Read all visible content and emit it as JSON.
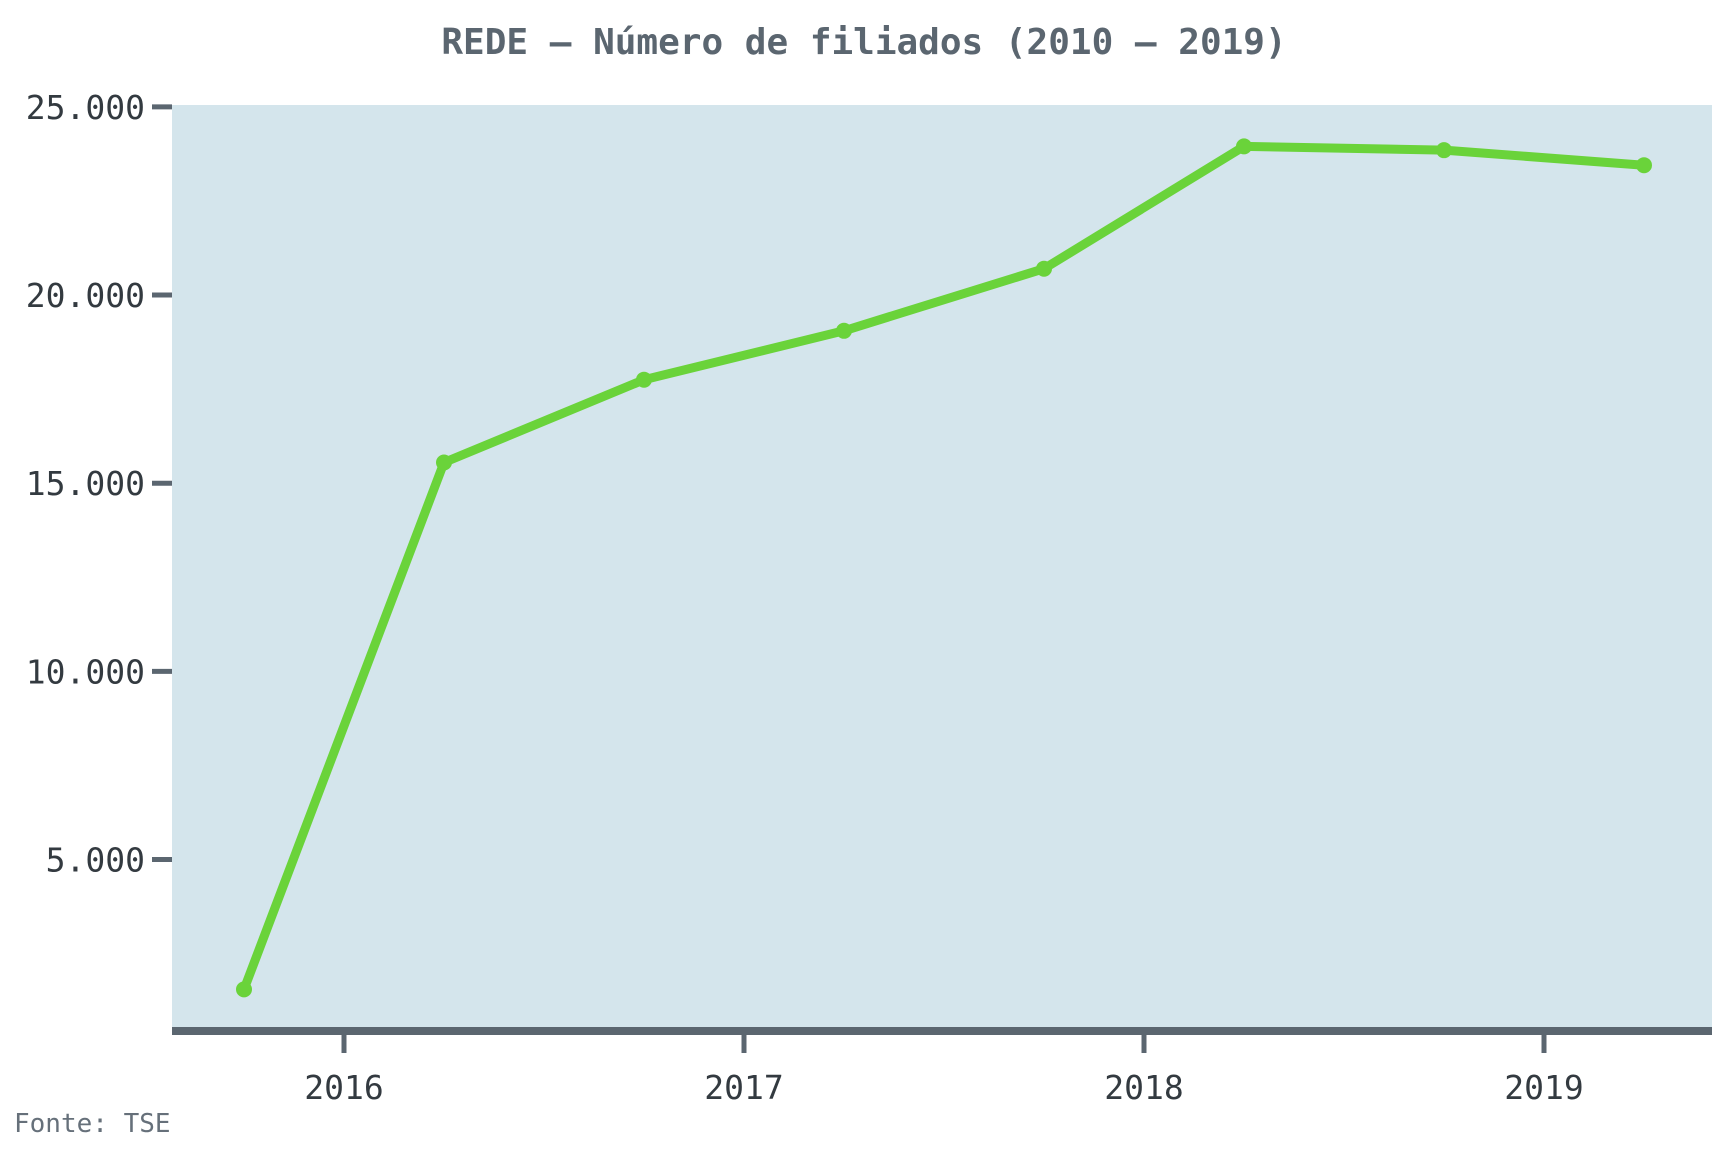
{
  "chart_data": {
    "type": "line",
    "title": "REDE – Número de filiados (2010 – 2019)",
    "xlabel": "",
    "ylabel": "",
    "x_ticks": [
      {
        "value": 2016,
        "label": "2016"
      },
      {
        "value": 2017,
        "label": "2017"
      },
      {
        "value": 2018,
        "label": "2018"
      },
      {
        "value": 2019,
        "label": "2019"
      }
    ],
    "y_ticks": [
      {
        "value": 5000,
        "label": "5.000"
      },
      {
        "value": 10000,
        "label": "10.000"
      },
      {
        "value": 15000,
        "label": "15.000"
      },
      {
        "value": 20000,
        "label": "20.000"
      },
      {
        "value": 25000,
        "label": "25.000"
      }
    ],
    "xlim": [
      2015.57,
      2019.42
    ],
    "ylim": [
      550,
      25050
    ],
    "grid": false,
    "series": [
      {
        "color": "#6ad33a",
        "points": [
          {
            "x": 2015.75,
            "y": 1550
          },
          {
            "x": 2016.25,
            "y": 15550
          },
          {
            "x": 2016.75,
            "y": 17750
          },
          {
            "x": 2017.25,
            "y": 19050
          },
          {
            "x": 2017.75,
            "y": 20700
          },
          {
            "x": 2018.25,
            "y": 23950
          },
          {
            "x": 2018.75,
            "y": 23850
          },
          {
            "x": 2019.25,
            "y": 23450
          }
        ]
      }
    ],
    "background_color": "#d4e5ec",
    "axis_color": "#5b6670"
  },
  "source_note": "Fonte: TSE"
}
